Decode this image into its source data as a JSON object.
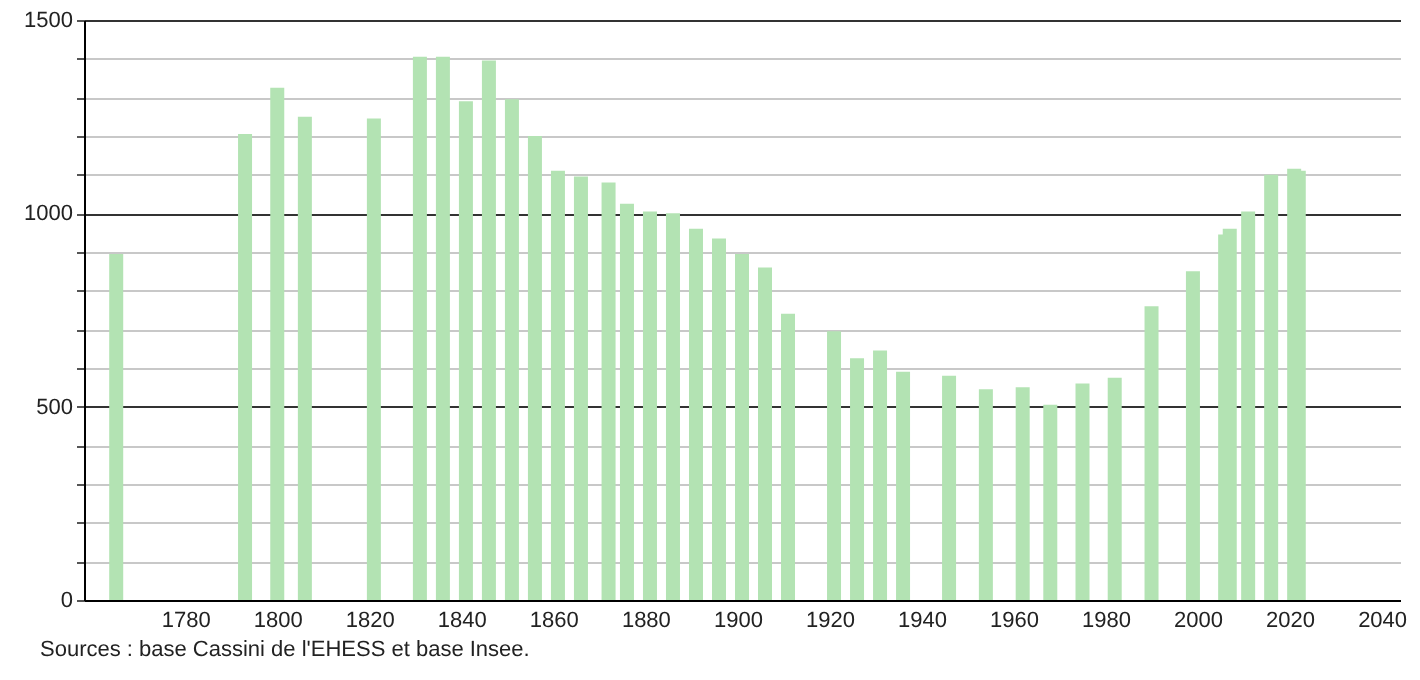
{
  "chart_data": {
    "type": "bar",
    "x": [
      1765,
      1793,
      1800,
      1806,
      1821,
      1831,
      1836,
      1841,
      1846,
      1851,
      1856,
      1861,
      1866,
      1872,
      1876,
      1881,
      1886,
      1891,
      1896,
      1901,
      1906,
      1911,
      1921,
      1926,
      1931,
      1936,
      1946,
      1954,
      1962,
      1968,
      1975,
      1982,
      1990,
      1999,
      2006,
      2007,
      2011,
      2016,
      2021,
      2022
    ],
    "series": [
      {
        "color": "#b3e3b3",
        "values": [
          895,
          1205,
          1325,
          1250,
          1245,
          1405,
          1405,
          1290,
          1395,
          1295,
          1200,
          1110,
          1095,
          1080,
          1025,
          1005,
          1000,
          960,
          935,
          895,
          860,
          740,
          695,
          625,
          645,
          590,
          580,
          545,
          550,
          505,
          560,
          575,
          760,
          850,
          945,
          960,
          1005,
          1100,
          1115,
          1110
        ]
      }
    ],
    "xlim": [
      1758,
      2044
    ],
    "xticks": [
      1780,
      1800,
      1820,
      1840,
      1860,
      1880,
      1900,
      1920,
      1940,
      1960,
      1980,
      2000,
      2020,
      2040
    ],
    "ylim": [
      0,
      1500
    ],
    "yticks": [
      0,
      {
        "value": 100,
        "label": null
      },
      {
        "value": 200,
        "label": null
      },
      {
        "value": 300,
        "label": null
      },
      {
        "value": 400,
        "label": null
      },
      500,
      {
        "value": 600,
        "label": null
      },
      {
        "value": 700,
        "label": null
      },
      {
        "value": 800,
        "label": null
      },
      {
        "value": 900,
        "label": null
      },
      1000,
      {
        "value": 1100,
        "label": null
      },
      {
        "value": 1200,
        "label": null
      },
      {
        "value": 1300,
        "label": null
      },
      {
        "value": 1400,
        "label": null
      },
      1500
    ],
    "grid": "y",
    "annotations": [
      "Sources : base Cassini de l'EHESS et base Insee."
    ]
  }
}
